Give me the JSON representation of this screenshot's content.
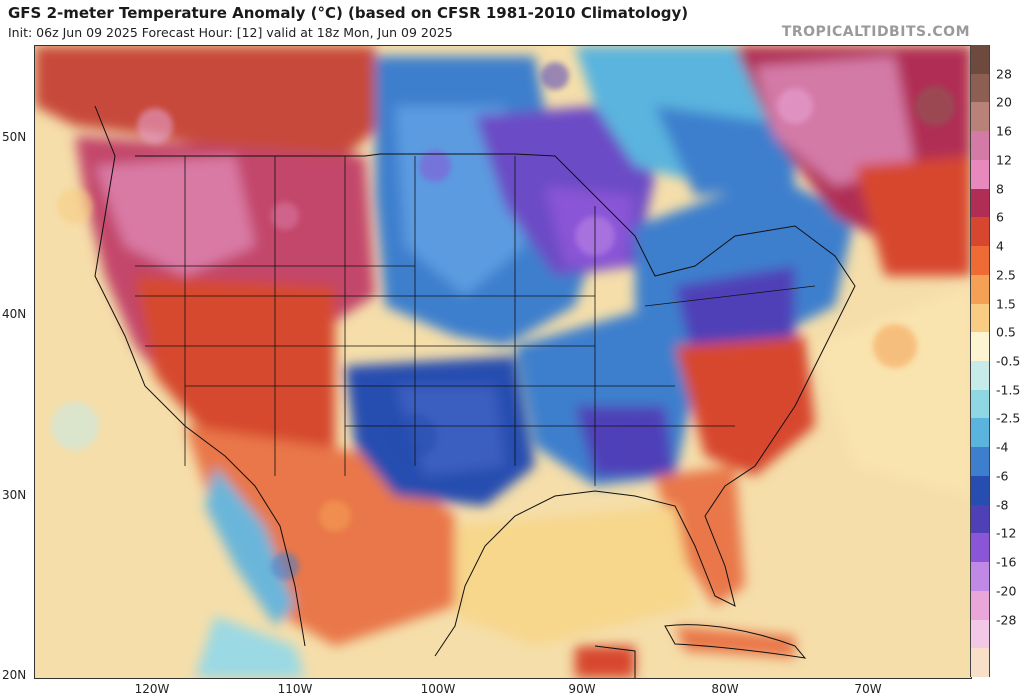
{
  "header": {
    "title": "GFS 2-meter Temperature Anomaly (°C) (based on CFSR 1981-2010 Climatology)",
    "subtitle": "Init: 06z Jun 09 2025   Forecast Hour: [12]   valid at 18z Mon, Jun 09 2025",
    "brand": "TROPICALTIDBITS.COM"
  },
  "axes": {
    "lat_labels": [
      "50N",
      "40N",
      "30N",
      "20N"
    ],
    "lon_labels": [
      "120W",
      "110W",
      "100W",
      "90W",
      "80W",
      "70W"
    ]
  },
  "colorbar": {
    "labels": [
      "28",
      "20",
      "16",
      "12",
      "8",
      "6",
      "4",
      "2.5",
      "1.5",
      "0.5",
      "-0.5",
      "-1.5",
      "-2.5",
      "-4",
      "-6",
      "-8",
      "-12",
      "-16",
      "-20",
      "-28"
    ],
    "colors": [
      "#6e4a3e",
      "#8c5f52",
      "#b98278",
      "#d47aa7",
      "#e789bd",
      "#b02d55",
      "#d7472f",
      "#ee6b35",
      "#f5a155",
      "#f8cc82",
      "#fdf5d2",
      "#c7ebe8",
      "#8fd7e2",
      "#5ab4de",
      "#3e7fcd",
      "#284db0",
      "#5040b8",
      "#8a55d6",
      "#c089e6",
      "#e9a6d8",
      "#f3c8e6",
      "#f8e0c8"
    ]
  },
  "colors": {
    "warm_dark": "#b02d55",
    "warm": "#d7472f",
    "cool": "#3e7fcd",
    "cool_dark": "#284db0",
    "neutral": "#f6dfa6"
  }
}
